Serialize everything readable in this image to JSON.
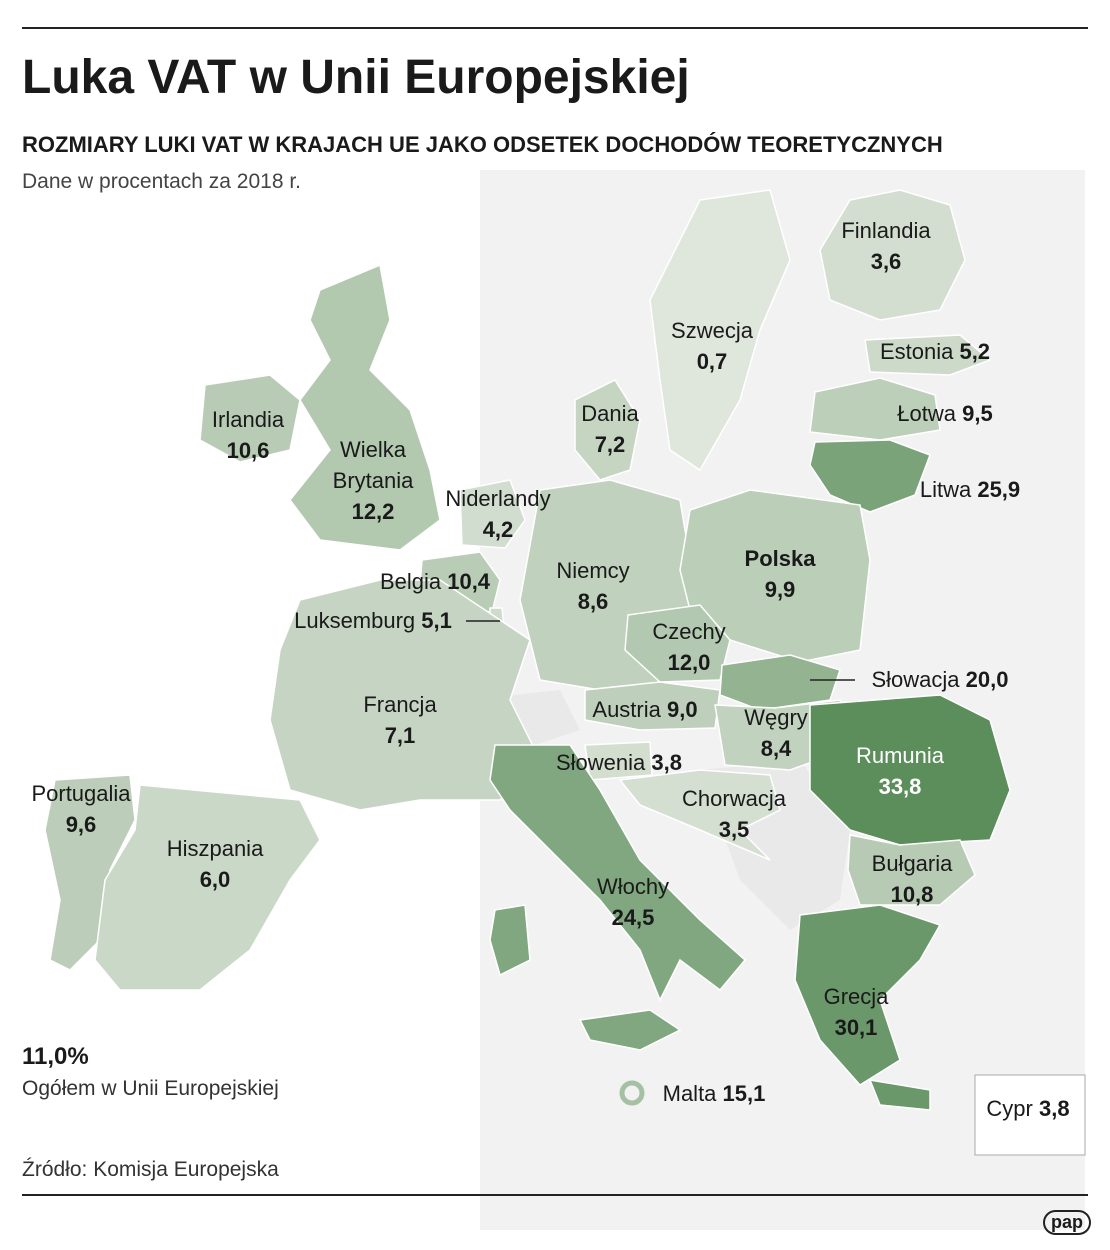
{
  "header": {
    "title": "Luka VAT w Unii Europejskiej",
    "subtitle": "ROZMIARY LUKI VAT W KRAJACH UE JAKO ODSETEK  DOCHODÓW TEORETYCZNYCH",
    "note": "Dane w procentach za 2018 r."
  },
  "countries": [
    {
      "name": "Finlandia",
      "value": 3.6,
      "value_label": "3,6"
    },
    {
      "name": "Szwecja",
      "value": 0.7,
      "value_label": "0,7"
    },
    {
      "name": "Estonia",
      "value": 5.2,
      "value_label": "5,2"
    },
    {
      "name": "Łotwa",
      "value": 9.5,
      "value_label": "9,5"
    },
    {
      "name": "Litwa",
      "value": 25.9,
      "value_label": "25,9"
    },
    {
      "name": "Dania",
      "value": 7.2,
      "value_label": "7,2"
    },
    {
      "name": "Irlandia",
      "value": 10.6,
      "value_label": "10,6"
    },
    {
      "name": "Wielka Brytania",
      "value": 12.2,
      "value_label": "12,2"
    },
    {
      "name": "Niderlandy",
      "value": 4.2,
      "value_label": "4,2"
    },
    {
      "name": "Belgia",
      "value": 10.4,
      "value_label": "10,4"
    },
    {
      "name": "Luksemburg",
      "value": 5.1,
      "value_label": "5,1"
    },
    {
      "name": "Niemcy",
      "value": 8.6,
      "value_label": "8,6"
    },
    {
      "name": "Polska",
      "value": 9.9,
      "value_label": "9,9"
    },
    {
      "name": "Czechy",
      "value": 12.0,
      "value_label": "12,0"
    },
    {
      "name": "Słowacja",
      "value": 20.0,
      "value_label": "20,0"
    },
    {
      "name": "Austria",
      "value": 9.0,
      "value_label": "9,0"
    },
    {
      "name": "Węgry",
      "value": 8.4,
      "value_label": "8,4"
    },
    {
      "name": "Francja",
      "value": 7.1,
      "value_label": "7,1"
    },
    {
      "name": "Słowenia",
      "value": 3.8,
      "value_label": "3,8"
    },
    {
      "name": "Chorwacja",
      "value": 3.5,
      "value_label": "3,5"
    },
    {
      "name": "Rumunia",
      "value": 33.8,
      "value_label": "33,8"
    },
    {
      "name": "Portugalia",
      "value": 9.6,
      "value_label": "9,6"
    },
    {
      "name": "Hiszpania",
      "value": 6.0,
      "value_label": "6,0"
    },
    {
      "name": "Bułgaria",
      "value": 10.8,
      "value_label": "10,8"
    },
    {
      "name": "Włochy",
      "value": 24.5,
      "value_label": "24,5"
    },
    {
      "name": "Grecja",
      "value": 30.1,
      "value_label": "30,1"
    },
    {
      "name": "Malta",
      "value": 15.1,
      "value_label": "15,1"
    },
    {
      "name": "Cypr",
      "value": 3.8,
      "value_label": "3,8"
    }
  ],
  "total": {
    "value": 11.0,
    "value_label": "11,0%",
    "caption": "Ogółem w Unii Europejskiej"
  },
  "footer": {
    "source": "Źródło: Komisja Europejska",
    "logo": "pap"
  }
}
